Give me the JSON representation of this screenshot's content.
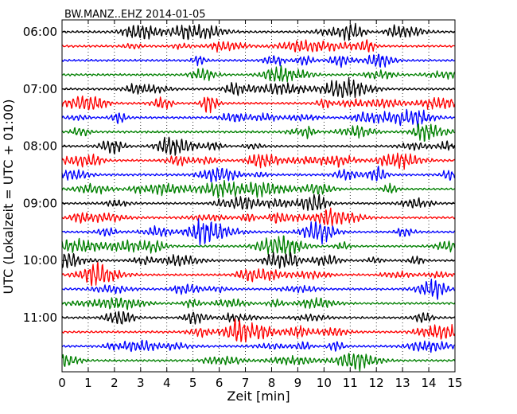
{
  "chart_data": {
    "type": "line",
    "title": "BW.MANZ..EHZ 2014-01-05",
    "xlabel": "Zeit  [min]",
    "ylabel": "UTC (Lokalzeit = UTC + 01:00)",
    "xlim": [
      0,
      15
    ],
    "x_ticks": [
      "0",
      "1",
      "2",
      "3",
      "4",
      "5",
      "6",
      "7",
      "8",
      "9",
      "10",
      "11",
      "12",
      "13",
      "14",
      "15"
    ],
    "y_ticks": [
      "06:00",
      "07:00",
      "08:00",
      "09:00",
      "10:00",
      "11:00"
    ],
    "y_tick_rows": [
      0,
      4,
      8,
      12,
      16,
      20
    ],
    "trace_count": 24,
    "trace_interval_min": 15,
    "grid": "vertical dotted at each minute",
    "colors": [
      "#000000",
      "#ff0000",
      "#0000ff",
      "#008000"
    ]
  }
}
